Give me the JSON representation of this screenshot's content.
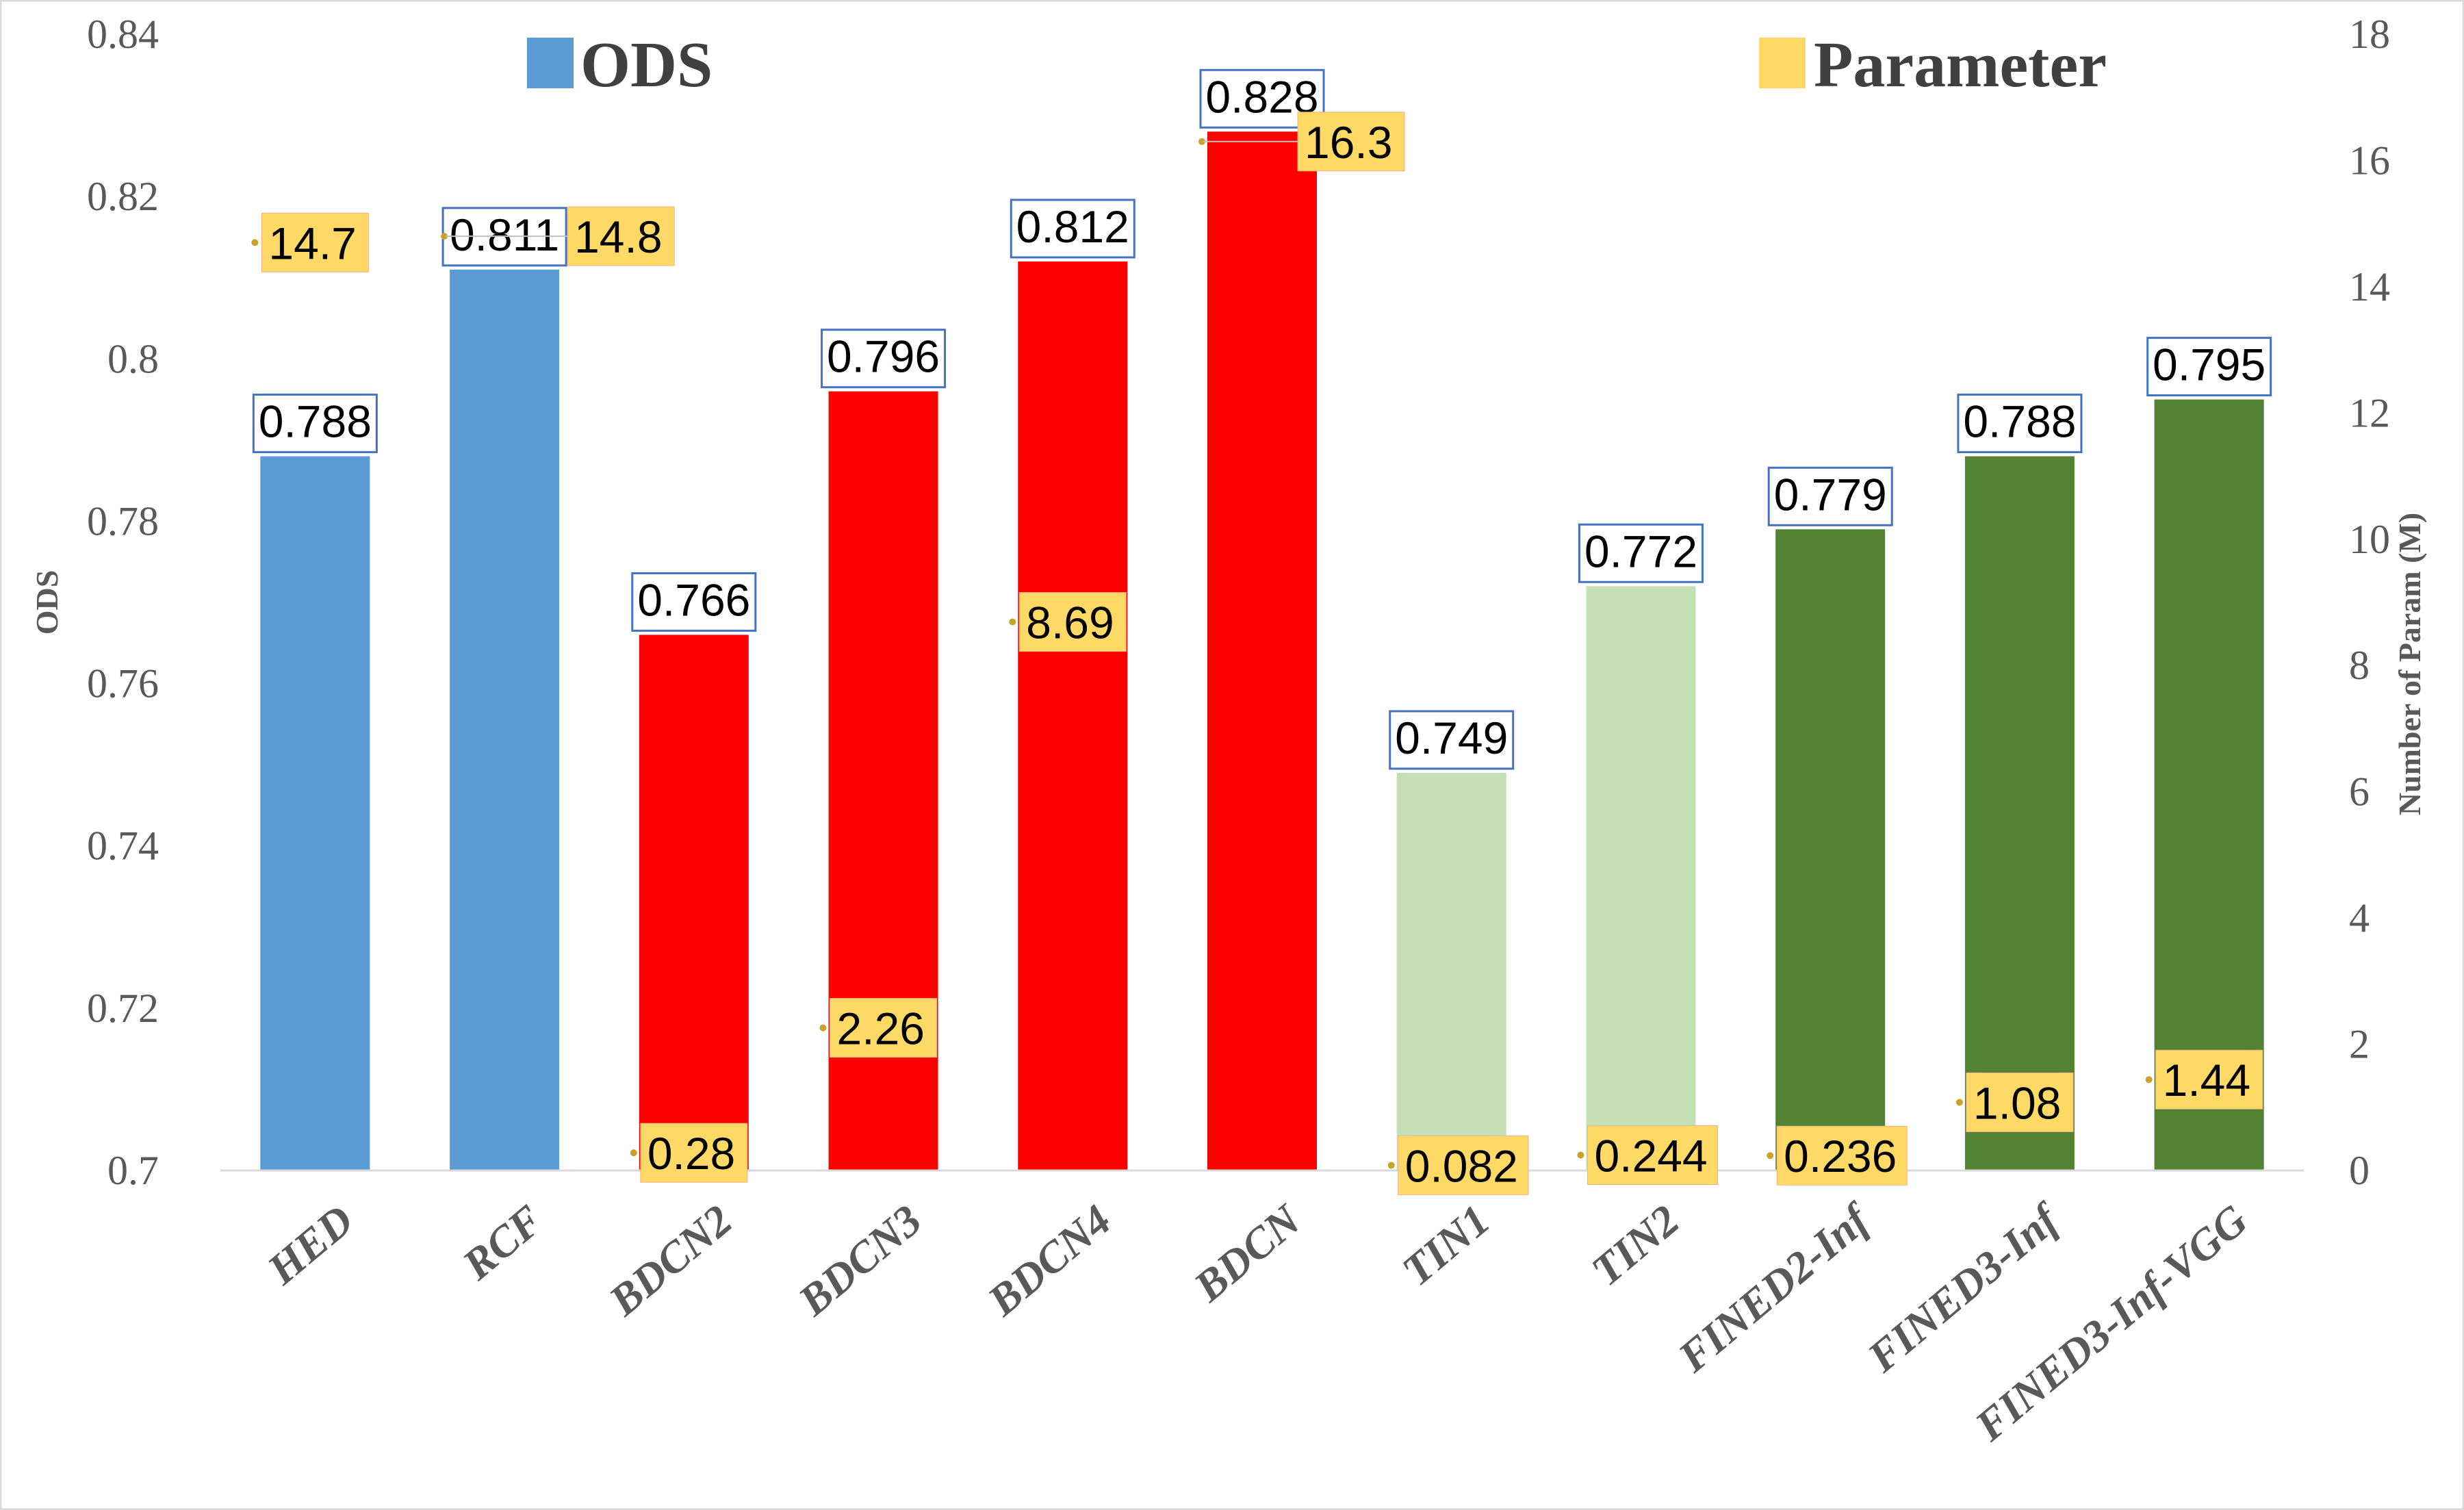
{
  "chart_data": {
    "type": "bar",
    "categories": [
      "HED",
      "RCF",
      "BDCN2",
      "BDCN3",
      "BDCN4",
      "BDCN",
      "TIN1",
      "TIN2",
      "FINED2-Inf",
      "FINED3-Inf",
      "FINED3-Inf-VGG"
    ],
    "series": [
      {
        "name": "ODS",
        "axis": "left",
        "type": "bar",
        "values": [
          0.788,
          0.811,
          0.766,
          0.796,
          0.812,
          0.828,
          0.749,
          0.772,
          0.779,
          0.788,
          0.795
        ],
        "labels": [
          "0.788",
          "0.811",
          "0.766",
          "0.796",
          "0.812",
          "0.828",
          "0.749",
          "0.772",
          "0.779",
          "0.788",
          "0.795"
        ],
        "colors": [
          "#5b9bd5",
          "#5b9bd5",
          "#ff0000",
          "#ff0000",
          "#ff0000",
          "#ff0000",
          "#c5e0b4",
          "#c5e0b4",
          "#548235",
          "#548235",
          "#548235"
        ]
      },
      {
        "name": "Parameter",
        "axis": "right",
        "type": "scatter",
        "values": [
          14.7,
          14.8,
          0.28,
          2.26,
          8.69,
          16.3,
          0.082,
          0.244,
          0.236,
          1.08,
          1.44
        ],
        "labels": [
          "14.7",
          "14.8",
          "0.28",
          "2.26",
          "8.69",
          "16.3",
          "0.082",
          "0.244",
          "0.236",
          "1.08",
          "1.44"
        ],
        "color": "#ffd966"
      }
    ],
    "ylabel": "ODS",
    "ylabel_right": "Number of Param (M)",
    "ylim": [
      0.7,
      0.84
    ],
    "yticks": [
      "0.7",
      "0.72",
      "0.74",
      "0.76",
      "0.78",
      "0.8",
      "0.82",
      "0.84"
    ],
    "y2lim": [
      0,
      18
    ],
    "y2ticks": [
      "0",
      "2",
      "4",
      "6",
      "8",
      "10",
      "12",
      "14",
      "16",
      "18"
    ],
    "legend": [
      {
        "label": "ODS",
        "color": "#5b9bd5"
      },
      {
        "label": "Parameter",
        "color": "#ffd966"
      }
    ],
    "legend_position": "top",
    "grid": false
  }
}
